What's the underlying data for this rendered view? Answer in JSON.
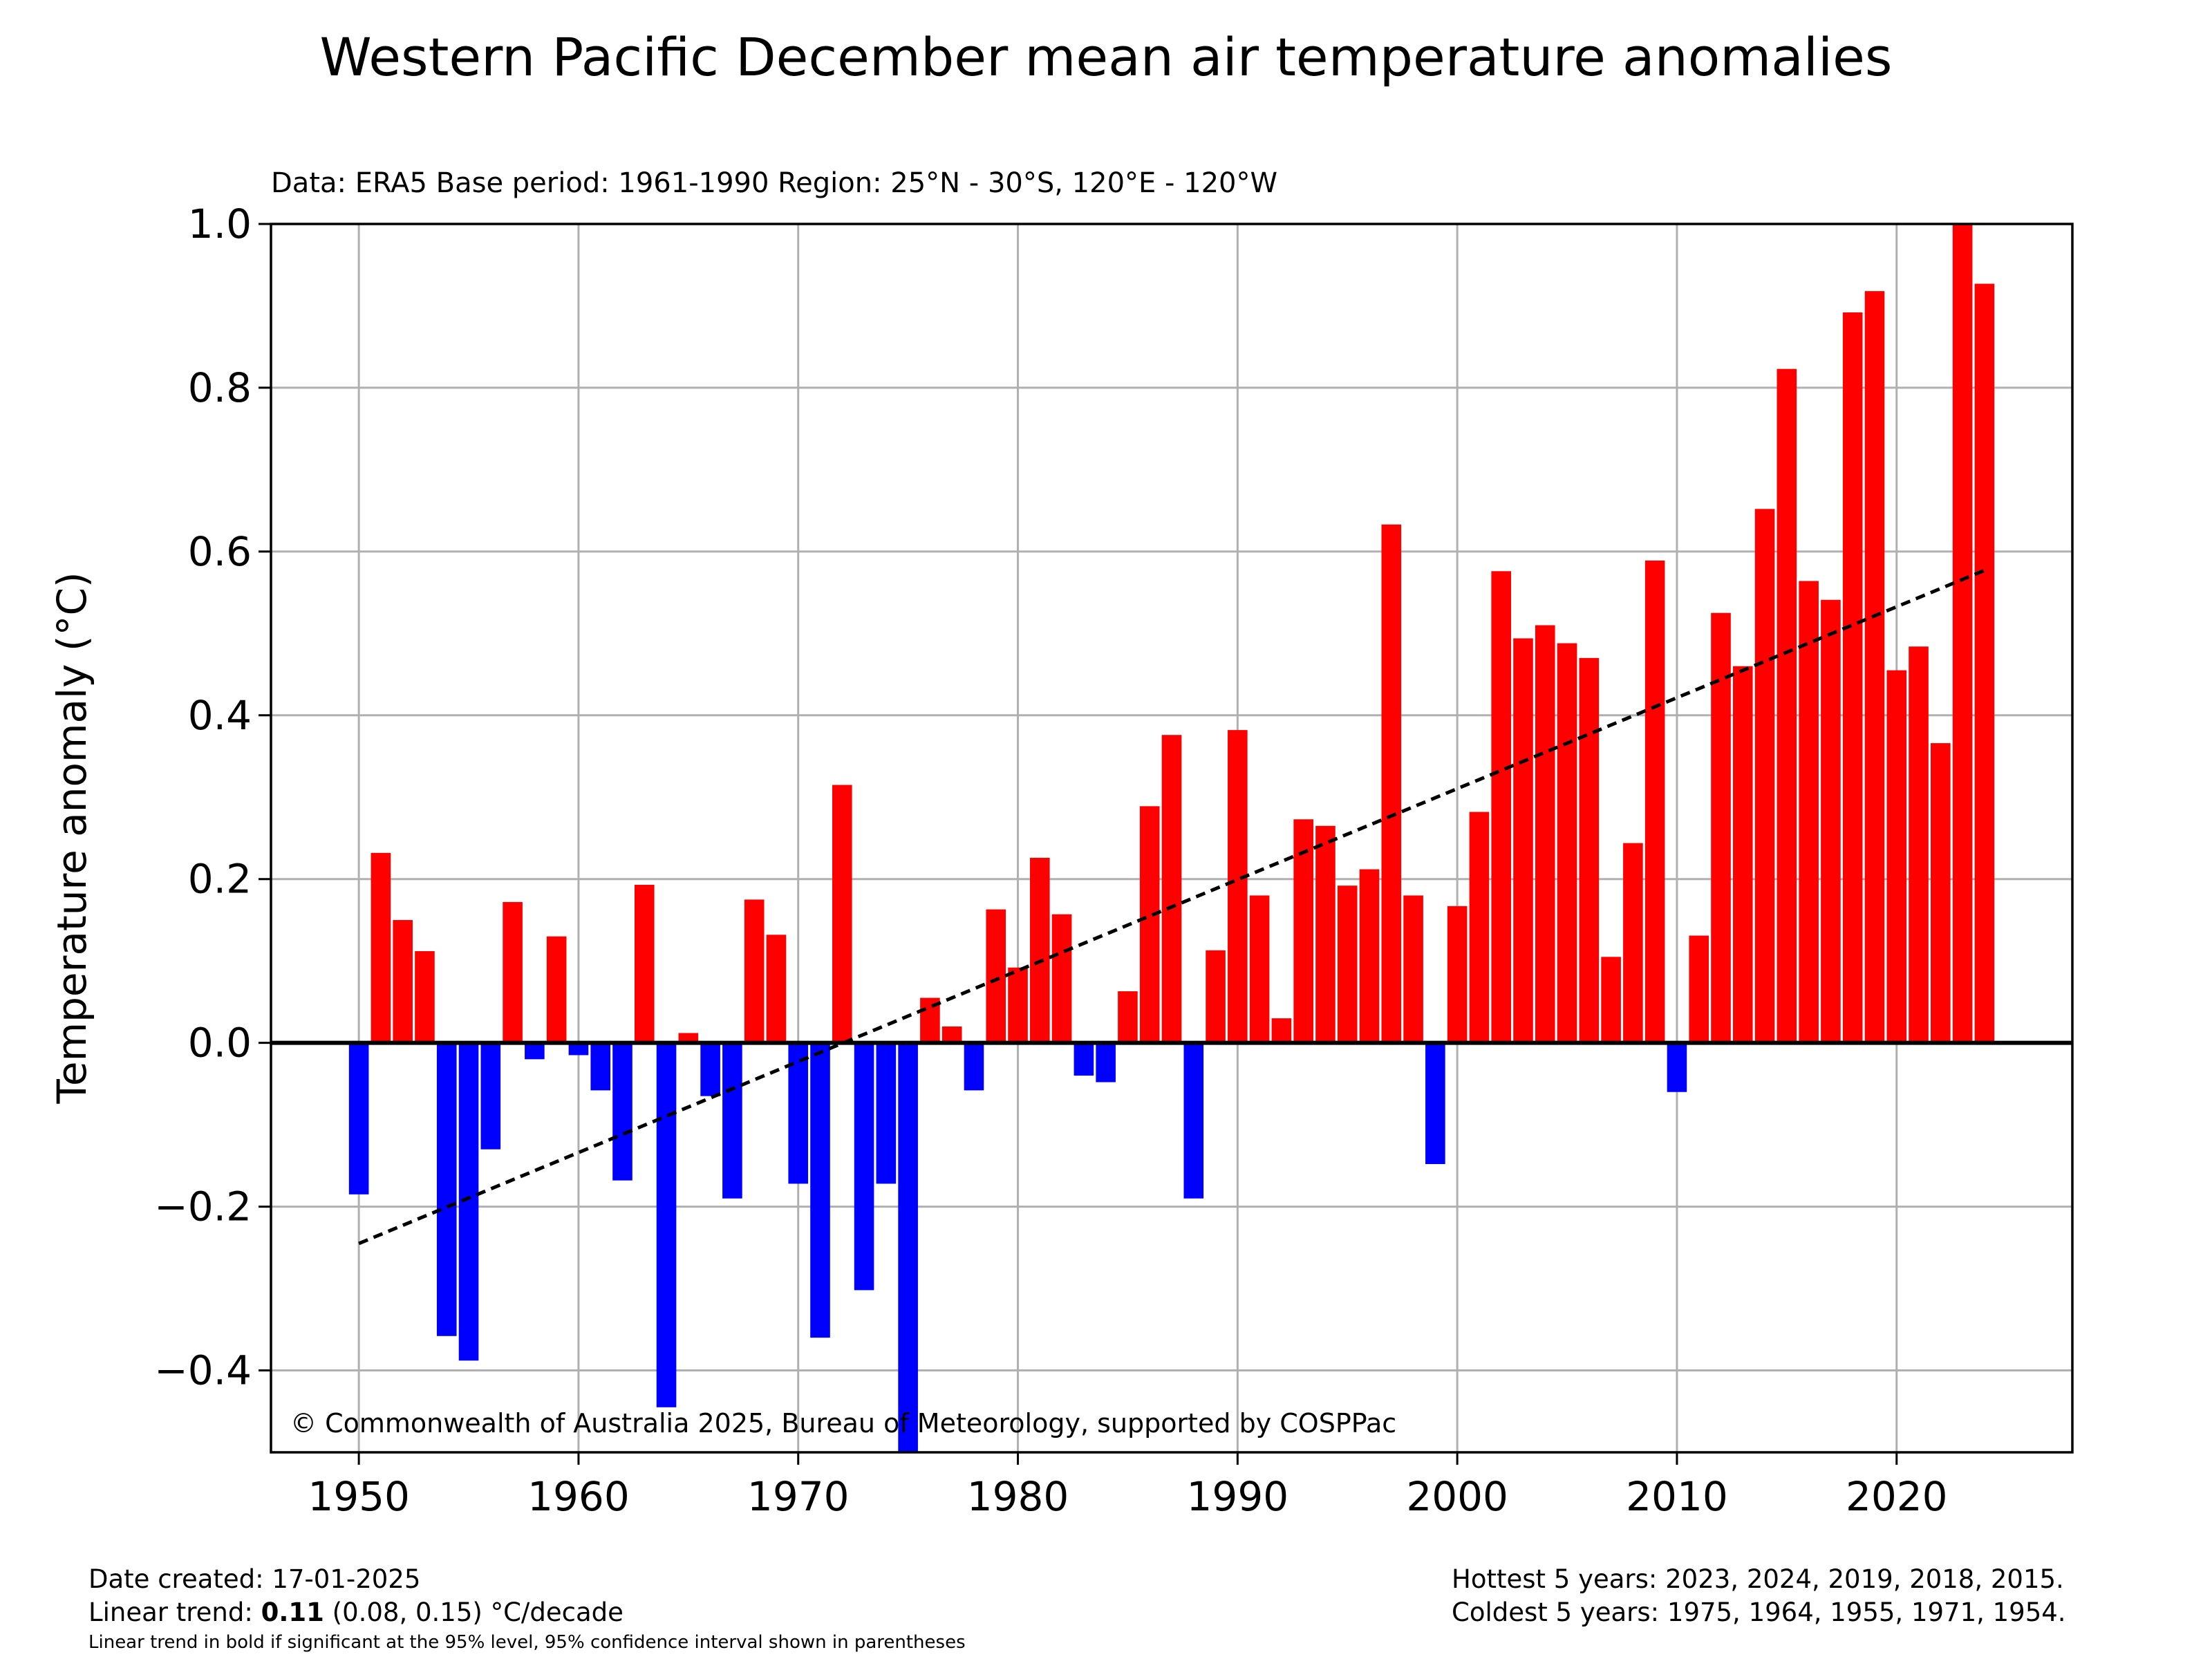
{
  "chart_data": {
    "type": "bar",
    "title": "Western Pacific December mean air temperature anomalies",
    "subtitle": "Data: ERA5  Base period: 1961-1990  Region: 25°N - 30°S, 120°E - 120°W",
    "ylabel": "Temperature anomaly (°C)",
    "xlabel": "",
    "xlim": [
      1946,
      2028
    ],
    "ylim": [
      -0.5,
      1.0
    ],
    "x_ticks": [
      1950,
      1960,
      1970,
      1980,
      1990,
      2000,
      2010,
      2020
    ],
    "y_ticks": [
      -0.4,
      -0.2,
      0.0,
      0.2,
      0.4,
      0.6,
      0.8,
      1.0
    ],
    "y_tick_labels": [
      "−0.4",
      "−0.2",
      "0.0",
      "0.2",
      "0.4",
      "0.6",
      "0.8",
      "1.0"
    ],
    "grid": true,
    "colors": {
      "positive": "#ff0000",
      "negative": "#0000ff",
      "trend": "#000000",
      "grid": "#b0b0b0"
    },
    "years": [
      1950,
      1951,
      1952,
      1953,
      1954,
      1955,
      1956,
      1957,
      1958,
      1959,
      1960,
      1961,
      1962,
      1963,
      1964,
      1965,
      1966,
      1967,
      1968,
      1969,
      1970,
      1971,
      1972,
      1973,
      1974,
      1975,
      1976,
      1977,
      1978,
      1979,
      1980,
      1981,
      1982,
      1983,
      1984,
      1985,
      1986,
      1987,
      1988,
      1989,
      1990,
      1991,
      1992,
      1993,
      1994,
      1995,
      1996,
      1997,
      1998,
      1999,
      2000,
      2001,
      2002,
      2003,
      2004,
      2005,
      2006,
      2007,
      2008,
      2009,
      2010,
      2011,
      2012,
      2013,
      2014,
      2015,
      2016,
      2017,
      2018,
      2019,
      2020,
      2021,
      2022,
      2023,
      2024
    ],
    "values": [
      -0.185,
      0.232,
      0.15,
      0.112,
      -0.358,
      -0.388,
      -0.13,
      0.172,
      -0.02,
      0.13,
      -0.015,
      -0.058,
      -0.168,
      0.193,
      -0.445,
      0.012,
      -0.065,
      -0.19,
      0.175,
      0.132,
      -0.172,
      -0.36,
      0.315,
      -0.302,
      -0.172,
      -0.5,
      0.055,
      0.02,
      -0.058,
      0.163,
      0.092,
      0.226,
      0.157,
      -0.04,
      -0.048,
      0.063,
      0.289,
      0.376,
      -0.19,
      0.113,
      0.382,
      0.18,
      0.03,
      0.273,
      0.265,
      0.192,
      0.212,
      0.633,
      0.18,
      -0.148,
      0.167,
      0.282,
      0.576,
      0.494,
      0.51,
      0.488,
      0.47,
      0.105,
      0.244,
      0.589,
      -0.06,
      0.131,
      0.525,
      0.46,
      0.652,
      0.823,
      0.564,
      0.541,
      0.892,
      0.918,
      0.455,
      0.484,
      0.366,
      1.0,
      0.927
    ],
    "trend_line": {
      "x": [
        1950,
        2024
      ],
      "y": [
        -0.245,
        0.577
      ]
    },
    "annotation": "© Commonwealth of Australia 2025, Bureau of Meteorology, supported by COSPPac"
  },
  "footer": {
    "date_created": "Date created: 17-01-2025",
    "trend_prefix": "Linear trend: ",
    "trend_value": "0.11",
    "trend_suffix": " (0.08, 0.15) °C/decade",
    "note": "Linear trend in bold if significant at the 95% level, 95% confidence interval shown in parentheses",
    "hottest": "Hottest 5 years: 2023, 2024, 2019, 2018, 2015.",
    "coldest": "Coldest 5 years: 1975, 1964, 1955, 1971, 1954."
  }
}
